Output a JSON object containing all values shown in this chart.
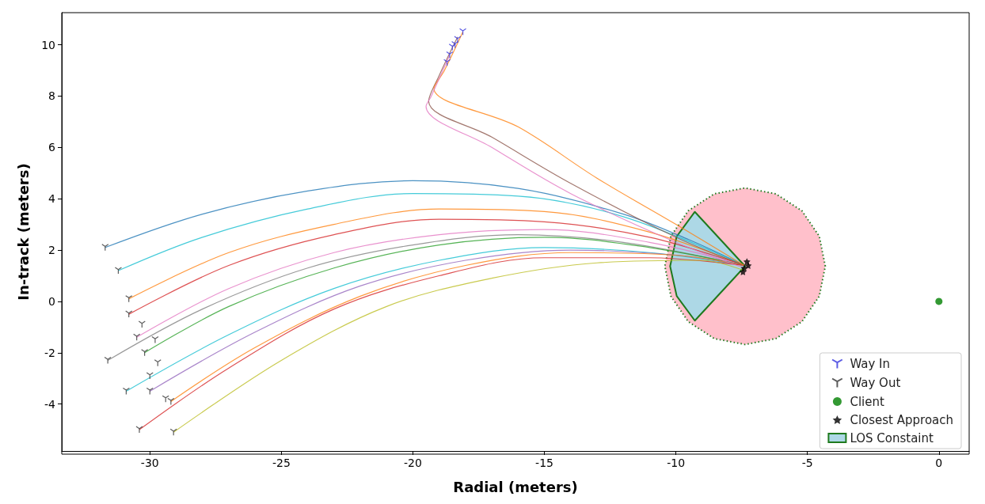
{
  "chart_data": {
    "type": "line",
    "xlabel": "Radial (meters)",
    "ylabel": "In-track (meters)",
    "xlim": [
      -33.35,
      1.15
    ],
    "ylim": [
      -5.83,
      11.25
    ],
    "xticks": [
      -30,
      -25,
      -20,
      -15,
      -10,
      -5,
      0
    ],
    "yticks": [
      -4,
      -2,
      0,
      2,
      4,
      6,
      8,
      10
    ],
    "grid": false,
    "legend": "bottom right",
    "series": [
      {
        "color": "#1f77b4",
        "x": [
          -31.7,
          -28,
          -24,
          -20,
          -16,
          -12,
          -9.5,
          -7.4
        ],
        "values": [
          2.1,
          3.4,
          4.3,
          4.7,
          4.4,
          3.4,
          2.4,
          1.4
        ]
      },
      {
        "color": "#17becf",
        "x": [
          -31.2,
          -28,
          -24,
          -20,
          -16,
          -12,
          -7.4
        ],
        "values": [
          1.2,
          2.5,
          3.6,
          4.2,
          4.1,
          3.3,
          1.4
        ]
      },
      {
        "color": "#ff7f0e",
        "x": [
          -30.8,
          -27,
          -23,
          -19,
          -15,
          -11,
          -7.4
        ],
        "values": [
          0.1,
          1.9,
          3.0,
          3.6,
          3.5,
          2.7,
          1.4
        ]
      },
      {
        "color": "#d62728",
        "x": [
          -30.8,
          -27,
          -23,
          -19,
          -15,
          -11,
          -7.4
        ],
        "values": [
          -0.5,
          1.4,
          2.6,
          3.2,
          3.1,
          2.5,
          1.4
        ]
      },
      {
        "color": "#e377c2",
        "x": [
          -30.5,
          -27,
          -23,
          -19,
          -15,
          -11,
          -7.4
        ],
        "values": [
          -1.4,
          0.5,
          1.9,
          2.6,
          2.8,
          2.3,
          1.4
        ]
      },
      {
        "color": "#7f7f7f",
        "x": [
          -31.6,
          -28,
          -24,
          -20,
          -16,
          -12,
          -7.4
        ],
        "values": [
          -2.3,
          -0.3,
          1.3,
          2.2,
          2.6,
          2.3,
          1.4
        ]
      },
      {
        "color": "#2ca02c",
        "x": [
          -30.2,
          -27,
          -23,
          -19,
          -15,
          -11,
          -7.4
        ],
        "values": [
          -2.0,
          -0.2,
          1.3,
          2.2,
          2.5,
          2.1,
          1.4
        ]
      },
      {
        "color": "#17becf",
        "x": [
          -30.9,
          -27,
          -23,
          -19,
          -15,
          -11,
          -7.4
        ],
        "values": [
          -3.5,
          -1.3,
          0.5,
          1.6,
          2.1,
          1.9,
          1.4
        ]
      },
      {
        "color": "#9467bd",
        "x": [
          -30.0,
          -26,
          -22,
          -18,
          -14,
          -10,
          -7.4
        ],
        "values": [
          -3.5,
          -1.2,
          0.6,
          1.6,
          2.0,
          1.8,
          1.4
        ]
      },
      {
        "color": "#ff7f0e",
        "x": [
          -29.2,
          -26,
          -22,
          -18,
          -14,
          -10,
          -7.4
        ],
        "values": [
          -3.9,
          -1.8,
          0.2,
          1.4,
          1.9,
          1.8,
          1.4
        ]
      },
      {
        "color": "#d62728",
        "x": [
          -30.4,
          -27,
          -23,
          -19,
          -15,
          -11,
          -7.4
        ],
        "values": [
          -5.0,
          -2.6,
          -0.3,
          1.0,
          1.7,
          1.7,
          1.4
        ]
      },
      {
        "color": "#bcbd22",
        "x": [
          -29.1,
          -25,
          -21,
          -17,
          -13,
          -9,
          -7.4
        ],
        "values": [
          -5.1,
          -2.3,
          -0.2,
          0.9,
          1.5,
          1.6,
          1.2
        ]
      },
      {
        "color": "#8c564b",
        "x": [
          -18.3,
          -19.0,
          -19.4,
          -17,
          -14,
          -10,
          -7.4
        ],
        "values": [
          10.3,
          8.8,
          7.8,
          6.4,
          4.6,
          2.5,
          1.4
        ]
      },
      {
        "color": "#ff7f0e",
        "x": [
          -18.1,
          -18.8,
          -19.2,
          -16,
          -13,
          -10,
          -7.4
        ],
        "values": [
          10.5,
          9.0,
          8.3,
          6.8,
          4.8,
          3.0,
          1.4
        ]
      },
      {
        "color": "#e377c2",
        "x": [
          -18.6,
          -19.3,
          -19.5,
          -17,
          -14,
          -10,
          -7.4
        ],
        "values": [
          9.6,
          8.0,
          7.6,
          6.0,
          4.2,
          2.3,
          1.3
        ]
      },
      {
        "type": "scatter",
        "name": "Way In",
        "color": "#3333dd",
        "marker": "cross",
        "x": [
          -18.1,
          -18.3,
          -18.4,
          -18.5,
          -18.6,
          -18.7
        ],
        "values": [
          10.5,
          10.2,
          10.0,
          9.9,
          9.6,
          9.3
        ]
      },
      {
        "type": "scatter",
        "name": "Way Out",
        "color": "#333333",
        "marker": "cross",
        "x": [
          -31.7,
          -31.2,
          -30.8,
          -30.8,
          -30.5,
          -31.6,
          -30.2,
          -30.9,
          -30.0,
          -29.2,
          -30.4,
          -29.1,
          -30.3,
          -29.8,
          -29.7,
          -30.0,
          -29.4
        ],
        "values": [
          2.1,
          1.2,
          0.1,
          -0.5,
          -1.4,
          -2.3,
          -2.0,
          -3.5,
          -3.5,
          -3.9,
          -5.0,
          -5.1,
          -0.9,
          -1.5,
          -2.4,
          -2.9,
          -3.8
        ]
      },
      {
        "type": "scatter",
        "name": "Client",
        "color": "#008000",
        "marker": "circle",
        "x": [
          0
        ],
        "values": [
          0
        ]
      },
      {
        "type": "scatter",
        "name": "Closest Approach",
        "color": "#000000",
        "marker": "star",
        "x": [
          -7.4,
          -7.45,
          -7.3,
          -7.25
        ],
        "values": [
          1.3,
          1.15,
          1.55,
          1.4
        ]
      },
      {
        "type": "area",
        "color": "#ffc0cb",
        "line_style": "dotted",
        "x": [
          -4.32,
          -4.55,
          -5.21,
          -6.2,
          -7.37,
          -8.54,
          -9.53,
          -10.19,
          -10.42,
          -10.19,
          -9.53,
          -8.54,
          -7.37,
          -6.2,
          -5.21,
          -4.55
        ],
        "values": [
          1.37,
          2.54,
          3.53,
          4.19,
          4.42,
          4.19,
          3.53,
          2.54,
          1.37,
          0.2,
          -0.79,
          -1.45,
          -1.68,
          -1.45,
          -0.79,
          0.2
        ]
      },
      {
        "type": "area",
        "name": "LOS Constaint",
        "color": "#add8e6",
        "line_style": "solid",
        "x": [
          -7.37,
          -9.28,
          -9.97,
          -10.22,
          -9.97,
          -9.28
        ],
        "values": [
          1.37,
          3.49,
          2.53,
          1.37,
          0.21,
          -0.75
        ]
      }
    ]
  }
}
